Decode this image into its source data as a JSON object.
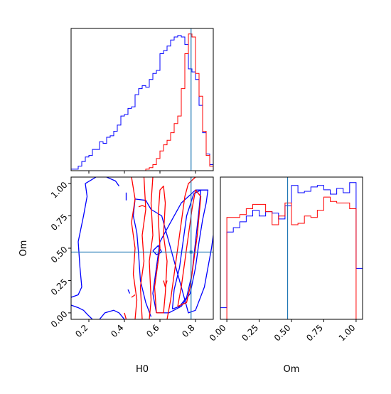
{
  "chart_data": {
    "type": "corner",
    "colors": {
      "series_a": "#0000ff",
      "series_b": "#ff0000",
      "truth": "#1f77b4",
      "axes": "#000000"
    },
    "truth": {
      "H0": 0.775,
      "Om": 0.47
    },
    "panels": [
      {
        "id": "H0-hist",
        "type": "histogram",
        "xlim": [
          0.1,
          0.9
        ],
        "x_ticks": [
          0.2,
          0.4,
          0.6,
          0.8
        ],
        "y_ticks": [],
        "bin_edges": [
          0.1,
          0.12,
          0.14,
          0.16,
          0.18,
          0.2,
          0.22,
          0.24,
          0.26,
          0.28,
          0.3,
          0.32,
          0.34,
          0.36,
          0.38,
          0.4,
          0.42,
          0.44,
          0.46,
          0.48,
          0.5,
          0.52,
          0.54,
          0.56,
          0.58,
          0.6,
          0.62,
          0.64,
          0.66,
          0.68,
          0.7,
          0.72,
          0.74,
          0.76,
          0.78,
          0.8,
          0.82,
          0.84,
          0.86,
          0.88,
          0.9
        ],
        "series": [
          {
            "color": "blue",
            "counts": [
              1,
              1,
              3,
              6,
              9,
              10,
              14,
              14,
              19,
              18,
              22,
              23,
              26,
              30,
              36,
              37,
              41,
              42,
              50,
              54,
              56,
              55,
              60,
              64,
              66,
              77,
              79,
              82,
              86,
              88,
              89,
              88,
              83,
              67,
              65,
              60,
              43,
              25,
              11,
              4
            ]
          },
          {
            "color": "red",
            "counts": [
              0,
              0,
              0,
              0,
              0,
              0,
              0,
              0,
              0,
              0,
              0,
              0,
              0,
              0,
              0,
              0,
              0,
              0,
              0,
              0,
              0,
              1,
              2,
              4,
              8,
              13,
              17,
              20,
              25,
              31,
              36,
              54,
              77,
              90,
              88,
              64,
              49,
              26,
              10,
              3
            ]
          }
        ]
      },
      {
        "id": "H0-Om-contour",
        "type": "contour",
        "xlabel": "H0",
        "ylabel": "Om",
        "xlim": [
          0.1,
          0.9
        ],
        "ylim": [
          -0.05,
          1.05
        ],
        "x_ticks": [
          0.2,
          0.4,
          0.6,
          0.8
        ],
        "x_tick_labels": [
          "0.2",
          "0.4",
          "0.6",
          "0.8"
        ],
        "y_ticks": [
          0.0,
          0.25,
          0.5,
          0.75,
          1.0
        ],
        "y_tick_labels": [
          "0.00",
          "0.25",
          "0.50",
          "0.75",
          "1.00"
        ],
        "series": [
          {
            "color": "blue",
            "contours": [
              [
                [
                  0.1,
                  0.12
                ],
                [
                  0.14,
                  0.14
                ],
                [
                  0.16,
                  0.2
                ],
                [
                  0.15,
                  0.35
                ],
                [
                  0.14,
                  0.55
                ],
                [
                  0.17,
                  0.75
                ],
                [
                  0.19,
                  0.9
                ],
                [
                  0.18,
                  1.0
                ],
                [
                  0.24,
                  1.05
                ]
              ],
              [
                [
                  0.3,
                  1.05
                ],
                [
                  0.35,
                  1.02
                ],
                [
                  0.37,
                  0.98
                ]
              ],
              [
                [
                  0.1,
                  0.06
                ],
                [
                  0.14,
                  0.04
                ],
                [
                  0.17,
                  0.02
                ],
                [
                  0.19,
                  -0.01
                ],
                [
                  0.22,
                  -0.05
                ]
              ],
              [
                [
                  0.26,
                  -0.05
                ],
                [
                  0.29,
                  0.0
                ],
                [
                  0.34,
                  0.02
                ],
                [
                  0.37,
                  0.0
                ],
                [
                  0.4,
                  -0.05
                ]
              ],
              [
                [
                  0.55,
                  -0.03
                ],
                [
                  0.52,
                  0.08
                ],
                [
                  0.49,
                  0.25
                ],
                [
                  0.48,
                  0.45
                ],
                [
                  0.47,
                  0.62
                ],
                [
                  0.45,
                  0.75
                ],
                [
                  0.46,
                  0.88
                ],
                [
                  0.52,
                  0.87
                ],
                [
                  0.55,
                  0.8
                ],
                [
                  0.61,
                  0.75
                ],
                [
                  0.64,
                  0.6
                ],
                [
                  0.68,
                  0.4
                ],
                [
                  0.72,
                  0.2
                ],
                [
                  0.75,
                  0.05
                ],
                [
                  0.76,
                  0.0
                ],
                [
                  0.8,
                  0.02
                ],
                [
                  0.85,
                  0.2
                ],
                [
                  0.89,
                  0.5
                ],
                [
                  0.9,
                  0.6
                ]
              ],
              [
                [
                  0.58,
                  0.0
                ],
                [
                  0.56,
                  0.15
                ],
                [
                  0.58,
                  0.35
                ],
                [
                  0.6,
                  0.55
                ],
                [
                  0.66,
                  0.7
                ],
                [
                  0.72,
                  0.85
                ],
                [
                  0.8,
                  0.95
                ],
                [
                  0.87,
                  0.95
                ],
                [
                  0.86,
                  0.85
                ],
                [
                  0.84,
                  0.72
                ],
                [
                  0.82,
                  0.55
                ],
                [
                  0.8,
                  0.35
                ],
                [
                  0.77,
                  0.15
                ],
                [
                  0.72,
                  0.05
                ],
                [
                  0.65,
                  0.0
                ],
                [
                  0.58,
                  0.0
                ]
              ],
              [
                [
                  0.67,
                  0.03
                ],
                [
                  0.68,
                  0.18
                ],
                [
                  0.71,
                  0.35
                ],
                [
                  0.73,
                  0.55
                ],
                [
                  0.75,
                  0.75
                ],
                [
                  0.79,
                  0.92
                ],
                [
                  0.83,
                  0.95
                ],
                [
                  0.82,
                  0.8
                ],
                [
                  0.8,
                  0.55
                ],
                [
                  0.78,
                  0.3
                ],
                [
                  0.75,
                  0.12
                ],
                [
                  0.71,
                  0.05
                ],
                [
                  0.67,
                  0.03
                ]
              ],
              [
                [
                  0.56,
                  0.48
                ],
                [
                  0.59,
                  0.52
                ],
                [
                  0.61,
                  0.47
                ],
                [
                  0.58,
                  0.45
                ],
                [
                  0.56,
                  0.48
                ]
              ],
              [
                [
                  0.42,
                  0.18
                ],
                [
                  0.43,
                  0.15
                ]
              ],
              [
                [
                  0.41,
                  0.93
                ],
                [
                  0.41,
                  0.87
                ]
              ]
            ]
          },
          {
            "color": "red",
            "contours": [
              [
                [
                  0.41,
                  -0.05
                ],
                [
                  0.4,
                  0.0
                ]
              ],
              [
                [
                  0.46,
                  -0.05
                ],
                [
                  0.47,
                  0.1
                ],
                [
                  0.45,
                  0.3
                ],
                [
                  0.46,
                  0.5
                ],
                [
                  0.44,
                  0.7
                ],
                [
                  0.46,
                  0.88
                ],
                [
                  0.44,
                  1.05
                ]
              ],
              [
                [
                  0.5,
                  -0.05
                ],
                [
                  0.49,
                  0.2
                ],
                [
                  0.51,
                  0.4
                ],
                [
                  0.5,
                  0.6
                ],
                [
                  0.52,
                  0.8
                ],
                [
                  0.51,
                  1.05
                ]
              ],
              [
                [
                  0.54,
                  -0.05
                ],
                [
                  0.55,
                  0.1
                ],
                [
                  0.54,
                  0.4
                ],
                [
                  0.56,
                  0.6
                ],
                [
                  0.55,
                  0.85
                ],
                [
                  0.56,
                  1.05
                ]
              ],
              [
                [
                  0.58,
                  0.0
                ],
                [
                  0.57,
                  0.2
                ],
                [
                  0.6,
                  0.5
                ],
                [
                  0.59,
                  0.75
                ],
                [
                  0.6,
                  0.95
                ],
                [
                  0.62,
                  0.98
                ],
                [
                  0.63,
                  0.85
                ],
                [
                  0.62,
                  0.6
                ],
                [
                  0.64,
                  0.4
                ],
                [
                  0.63,
                  0.15
                ],
                [
                  0.62,
                  0.0
                ],
                [
                  0.58,
                  0.0
                ]
              ],
              [
                [
                  0.64,
                  -0.05
                ],
                [
                  0.66,
                  0.1
                ],
                [
                  0.68,
                  0.3
                ],
                [
                  0.7,
                  0.5
                ],
                [
                  0.72,
                  0.7
                ],
                [
                  0.74,
                  0.9
                ],
                [
                  0.76,
                  1.0
                ],
                [
                  0.8,
                  1.05
                ]
              ],
              [
                [
                  0.7,
                  0.05
                ],
                [
                  0.72,
                  0.2
                ],
                [
                  0.74,
                  0.4
                ],
                [
                  0.76,
                  0.6
                ],
                [
                  0.78,
                  0.8
                ],
                [
                  0.8,
                  0.95
                ],
                [
                  0.83,
                  0.9
                ],
                [
                  0.81,
                  0.6
                ],
                [
                  0.79,
                  0.4
                ],
                [
                  0.77,
                  0.2
                ],
                [
                  0.75,
                  0.08
                ],
                [
                  0.7,
                  0.05
                ]
              ],
              [
                [
                  0.62,
                  0.25
                ],
                [
                  0.63,
                  0.2
                ],
                [
                  0.64,
                  0.25
                ]
              ],
              [
                [
                  0.48,
                  0.82
                ],
                [
                  0.5,
                  0.83
                ],
                [
                  0.52,
                  0.82
                ]
              ],
              [
                [
                  0.44,
                  0.12
                ],
                [
                  0.46,
                  0.14
                ]
              ]
            ]
          }
        ]
      },
      {
        "id": "Om-hist",
        "type": "histogram",
        "xlabel": "Om",
        "xlim": [
          -0.05,
          1.05
        ],
        "x_ticks": [
          0.0,
          0.25,
          0.5,
          0.75,
          1.0
        ],
        "x_tick_labels": [
          "0.00",
          "0.25",
          "0.50",
          "0.75",
          "1.00"
        ],
        "y_ticks": [],
        "bin_edges": [
          -0.05,
          0.0,
          0.05,
          0.1,
          0.15,
          0.2,
          0.25,
          0.3,
          0.35,
          0.4,
          0.45,
          0.5,
          0.55,
          0.6,
          0.65,
          0.7,
          0.75,
          0.8,
          0.85,
          0.9,
          0.95,
          1.0,
          1.05
        ],
        "series": [
          {
            "color": "blue",
            "counts": [
              8,
              60,
              63,
              67,
              71,
              75,
              71,
              74,
              73,
              69,
              78,
              92,
              87,
              88,
              91,
              92,
              89,
              86,
              90,
              87,
              94,
              35
            ]
          },
          {
            "color": "red",
            "counts": [
              0,
              70,
              70,
              72,
              76,
              79,
              79,
              74,
              65,
              71,
              80,
              65,
              66,
              71,
              70,
              75,
              84,
              81,
              80,
              80,
              76,
              0
            ]
          }
        ]
      }
    ]
  }
}
